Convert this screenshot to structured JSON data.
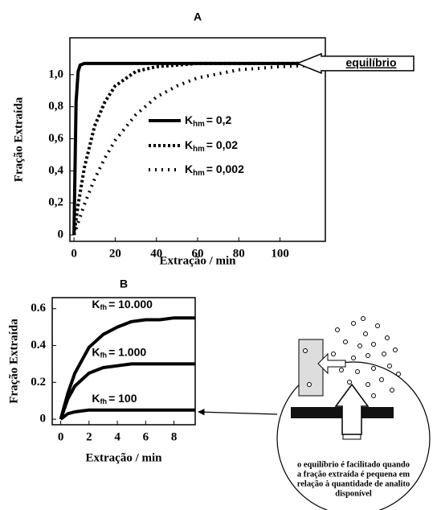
{
  "chart_data": [
    {
      "type": "line",
      "title": "A",
      "x_label": "Extração / min",
      "y_label": "Fração Extraída",
      "xlim": [
        -2,
        122
      ],
      "ylim": [
        -0.04,
        1.23
      ],
      "xticks": [
        0,
        20,
        40,
        60,
        80,
        100
      ],
      "yticks": [
        0,
        {
          "value": 0.2,
          "label": "0,2"
        },
        {
          "value": 0.4,
          "label": "0,4"
        },
        {
          "value": 0.6,
          "label": "0,6"
        },
        {
          "value": 0.8,
          "label": "0,8"
        },
        {
          "value": 1.0,
          "label": "1,0"
        }
      ],
      "annotation": "equilíbrio",
      "series": [
        {
          "name": {
            "main": "K",
            "sub": "hm",
            "rest": "= 0,2"
          },
          "color": "#000000",
          "dash": "solid",
          "x": [
            0,
            1,
            2,
            3,
            5,
            10,
            20,
            40,
            60,
            80,
            100,
            118
          ],
          "values": [
            0,
            0.83,
            1.02,
            1.06,
            1.07,
            1.07,
            1.07,
            1.07,
            1.07,
            1.07,
            1.07,
            1.07
          ]
        },
        {
          "name": {
            "main": "K",
            "sub": "hm",
            "rest": "= 0,02"
          },
          "color": "#000000",
          "dash": "dense",
          "x": [
            0,
            2,
            5,
            10,
            15,
            20,
            30,
            40,
            50,
            60,
            80,
            100,
            118
          ],
          "values": [
            0,
            0.19,
            0.42,
            0.68,
            0.83,
            0.93,
            1.02,
            1.05,
            1.06,
            1.07,
            1.07,
            1.07,
            1.07
          ]
        },
        {
          "name": {
            "main": "K",
            "sub": "hm",
            "rest": "= 0,002"
          },
          "color": "#000000",
          "dash": "sparse",
          "x": [
            0,
            5,
            10,
            15,
            20,
            30,
            40,
            50,
            60,
            80,
            100,
            118
          ],
          "values": [
            0,
            0.19,
            0.35,
            0.48,
            0.59,
            0.75,
            0.86,
            0.93,
            0.98,
            1.03,
            1.05,
            1.06
          ]
        }
      ]
    },
    {
      "type": "line",
      "title": "B",
      "x_label": "Extração / min",
      "y_label": "Fração Extraída",
      "xlim": [
        -0.6,
        9.5
      ],
      "ylim": [
        -0.03,
        0.66
      ],
      "xticks": [
        0,
        2,
        4,
        6,
        8
      ],
      "yticks": [
        0,
        0.2,
        0.4,
        0.6
      ],
      "series": [
        {
          "name": {
            "main": "K",
            "sub": "fh",
            "rest": "= 10.000"
          },
          "color": "#000000",
          "dash": "solid",
          "x": [
            0,
            0.5,
            1,
            2,
            3,
            4,
            5,
            6,
            7,
            8,
            9.5
          ],
          "values": [
            0,
            0.14,
            0.25,
            0.39,
            0.46,
            0.5,
            0.53,
            0.54,
            0.54,
            0.55,
            0.55
          ]
        },
        {
          "name": {
            "main": "K",
            "sub": "fh",
            "rest": "= 1.000"
          },
          "color": "#000000",
          "dash": "solid",
          "x": [
            0,
            0.5,
            1,
            2,
            3,
            4,
            5,
            6,
            7,
            8,
            9.5
          ],
          "values": [
            0,
            0.11,
            0.18,
            0.25,
            0.28,
            0.29,
            0.3,
            0.3,
            0.3,
            0.3,
            0.3
          ]
        },
        {
          "name": {
            "main": "K",
            "sub": "fh",
            "rest": "= 100"
          },
          "color": "#000000",
          "dash": "solid",
          "x": [
            0,
            0.5,
            1,
            2,
            3,
            4,
            5,
            6,
            7,
            8,
            9.5
          ],
          "values": [
            0,
            0.03,
            0.04,
            0.05,
            0.05,
            0.05,
            0.05,
            0.05,
            0.05,
            0.05,
            0.05
          ]
        }
      ]
    }
  ],
  "diagram": {
    "caption": [
      "o equilíbrio é facilitado quando",
      "a fração extraída é pequena em",
      "relação à quantidade de analito",
      "disponível"
    ]
  }
}
